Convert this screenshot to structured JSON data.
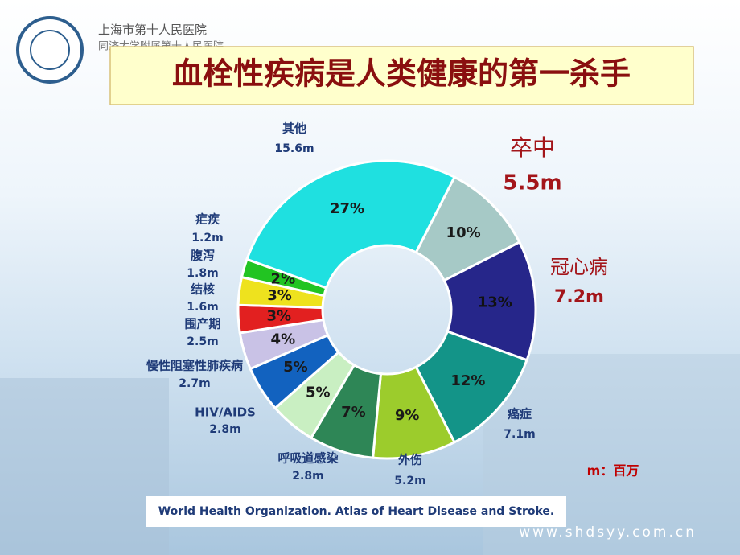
{
  "header": {
    "hospital_name": "上海市第十人民医院",
    "hospital_subname": "同济大学附属第十人民医院",
    "website": "www.shdsyy.com.cn"
  },
  "chart_data": {
    "type": "donut",
    "title": "血栓性疾病是人类健康的第一杀手",
    "categories": [
      "卒中",
      "冠心病",
      "癌症",
      "外伤",
      "呼吸道感染",
      "HIV/AIDS",
      "慢性阻塞性肺疾病",
      "围产期",
      "结核",
      "腹泻",
      "疟疾",
      "其他"
    ],
    "values": [
      10,
      13,
      12,
      9,
      7,
      5,
      5,
      4,
      3,
      3,
      2,
      27
    ],
    "value_labels": [
      "10%",
      "13%",
      "12%",
      "9%",
      "7%",
      "5%",
      "5%",
      "4%",
      "3%",
      "3%",
      "2%",
      "27%"
    ],
    "deaths_labels": [
      "5.5m",
      "7.2m",
      "7.1m",
      "5.2m",
      "2.8m",
      "2.8m",
      "2.7m",
      "2.5m",
      "1.6m",
      "1.8m",
      "1.2m",
      "15.6m"
    ],
    "colors": [
      "#a6c9c6",
      "#26268a",
      "#139488",
      "#9ccc2c",
      "#2e8656",
      "#c9efc2",
      "#1262bf",
      "#c9c2e6",
      "#e22020",
      "#eee21e",
      "#22c422",
      "#1fe0e0"
    ],
    "unit_note": "m：百万",
    "source": "World Health Organization. Atlas of Heart Disease and Stroke."
  }
}
